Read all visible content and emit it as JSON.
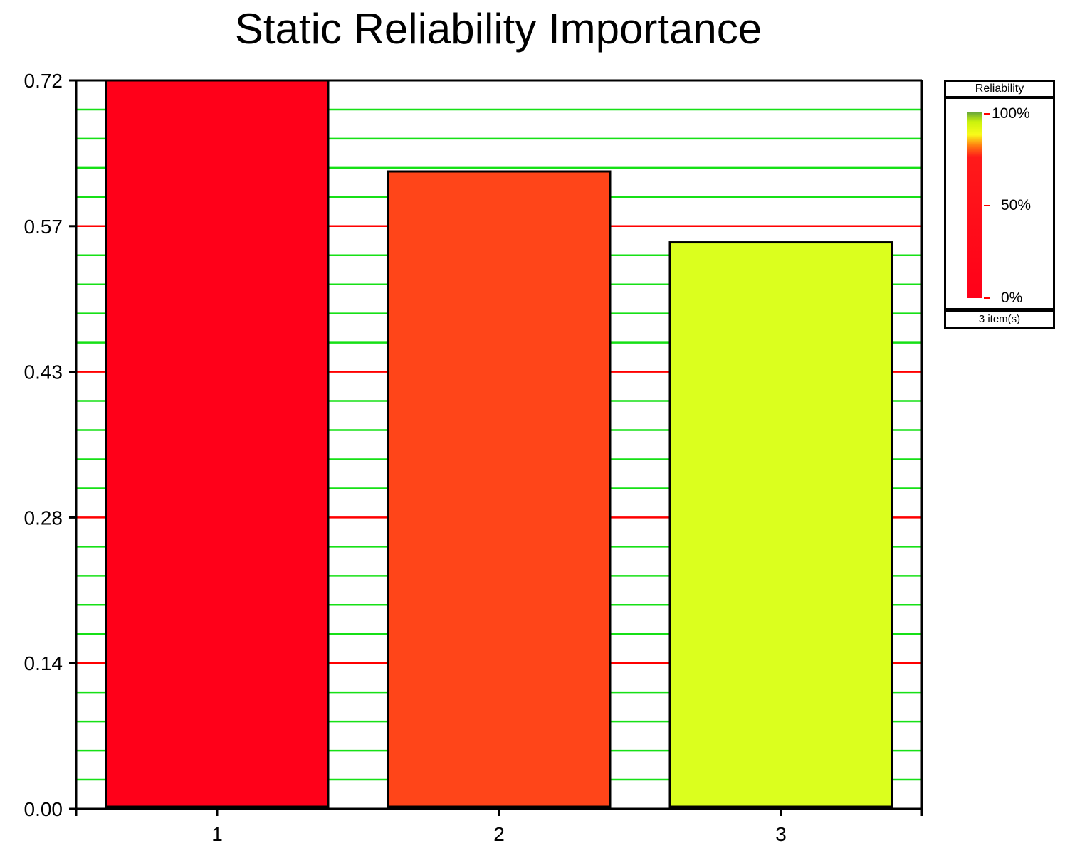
{
  "chart_data": {
    "type": "bar",
    "title": "Static Reliability Importance",
    "xlabel": "",
    "ylabel": "",
    "categories": [
      "1",
      "2",
      "3"
    ],
    "values": [
      0.72,
      0.63,
      0.56
    ],
    "ylim": [
      0,
      0.72
    ],
    "yticks": [
      "0.00",
      "0.14",
      "0.28",
      "0.43",
      "0.57",
      "0.72"
    ],
    "bar_colors": [
      "#ff0019",
      "#ff4519",
      "#dbff1e"
    ],
    "grid": true,
    "grid_major_color": "#ff0000",
    "grid_minor_color": "#16e016"
  },
  "legend": {
    "title": "Reliability",
    "labels": [
      "100%",
      "50%",
      "0%"
    ],
    "footer": "3 item(s)"
  }
}
